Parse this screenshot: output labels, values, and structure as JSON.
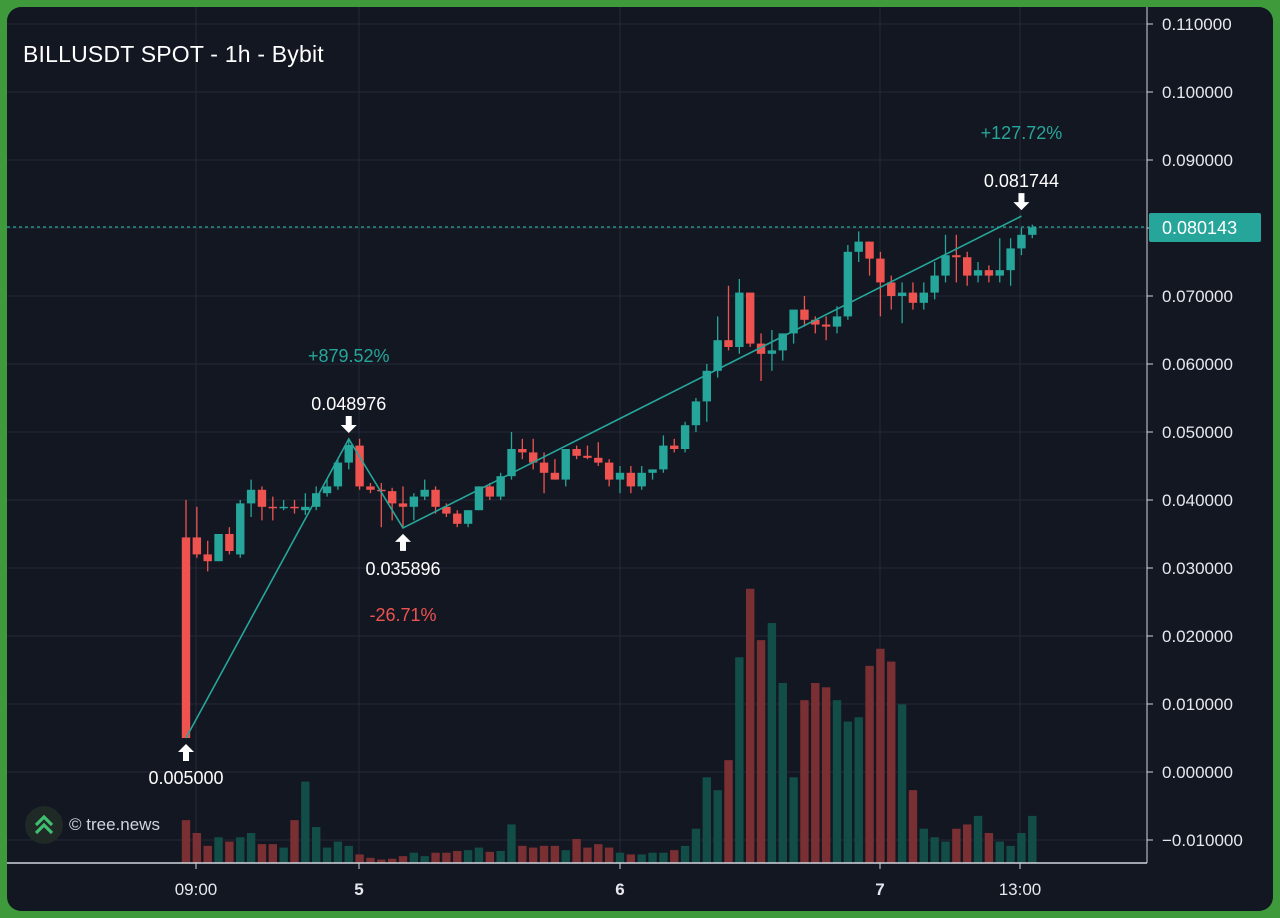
{
  "chart_data": {
    "type": "candlestick",
    "title": "BILLUSDT SPOT - 1h - Bybit",
    "y_ticks": [
      "0.110000",
      "0.100000",
      "0.090000",
      "0.080000",
      "0.070000",
      "0.060000",
      "0.050000",
      "0.040000",
      "0.030000",
      "0.020000",
      "0.010000",
      "0.000000",
      "−0.010000"
    ],
    "ylim": [
      -0.0125,
      0.1135
    ],
    "x_ticks": [
      {
        "label": "09:00",
        "index": 1,
        "bold": false
      },
      {
        "label": "5",
        "index": 16,
        "bold": true
      },
      {
        "label": "6",
        "index": 40,
        "bold": true
      },
      {
        "label": "7",
        "index": 64,
        "bold": true
      },
      {
        "label": "13:00",
        "index": 77,
        "bold": false
      }
    ],
    "grid": true,
    "last_price": "0.080143",
    "colors": {
      "up": "#26a69a",
      "down": "#ef5350",
      "vol_up": "#134d48",
      "vol_down": "#7a2f33",
      "pct_up": "#26a69a",
      "pct_down": "#ef5350"
    },
    "candles": [
      [
        0.0345,
        0.04,
        0.005,
        0.005
      ],
      [
        0.0345,
        0.039,
        0.0315,
        0.032
      ],
      [
        0.032,
        0.034,
        0.0295,
        0.031
      ],
      [
        0.031,
        0.035,
        0.031,
        0.035
      ],
      [
        0.035,
        0.036,
        0.032,
        0.0325
      ],
      [
        0.032,
        0.04,
        0.0315,
        0.0395
      ],
      [
        0.0395,
        0.043,
        0.0375,
        0.0415
      ],
      [
        0.0415,
        0.042,
        0.037,
        0.039
      ],
      [
        0.039,
        0.0405,
        0.037,
        0.0388
      ],
      [
        0.0388,
        0.04,
        0.0385,
        0.039
      ],
      [
        0.039,
        0.04,
        0.038,
        0.0388
      ],
      [
        0.0385,
        0.041,
        0.0378,
        0.039
      ],
      [
        0.039,
        0.042,
        0.0385,
        0.041
      ],
      [
        0.041,
        0.043,
        0.0405,
        0.042
      ],
      [
        0.042,
        0.046,
        0.0415,
        0.0455
      ],
      [
        0.0455,
        0.049,
        0.0445,
        0.0481
      ],
      [
        0.048,
        0.049,
        0.0415,
        0.042
      ],
      [
        0.042,
        0.0425,
        0.041,
        0.0415
      ],
      [
        0.0415,
        0.0425,
        0.036,
        0.0413
      ],
      [
        0.0413,
        0.0418,
        0.037,
        0.0395
      ],
      [
        0.0395,
        0.042,
        0.036,
        0.039
      ],
      [
        0.039,
        0.041,
        0.037,
        0.0405
      ],
      [
        0.0405,
        0.043,
        0.04,
        0.0415
      ],
      [
        0.0415,
        0.042,
        0.038,
        0.039
      ],
      [
        0.039,
        0.0395,
        0.0375,
        0.038
      ],
      [
        0.038,
        0.0385,
        0.036,
        0.0365
      ],
      [
        0.0365,
        0.0385,
        0.036,
        0.0385
      ],
      [
        0.0385,
        0.042,
        0.0385,
        0.042
      ],
      [
        0.042,
        0.0425,
        0.04,
        0.0405
      ],
      [
        0.0405,
        0.044,
        0.04,
        0.0435
      ],
      [
        0.0435,
        0.05,
        0.043,
        0.0475
      ],
      [
        0.0475,
        0.049,
        0.046,
        0.047
      ],
      [
        0.047,
        0.049,
        0.0445,
        0.0455
      ],
      [
        0.0455,
        0.047,
        0.041,
        0.044
      ],
      [
        0.044,
        0.046,
        0.043,
        0.043
      ],
      [
        0.043,
        0.047,
        0.042,
        0.0475
      ],
      [
        0.0475,
        0.048,
        0.046,
        0.0465
      ],
      [
        0.0465,
        0.048,
        0.046,
        0.0462
      ],
      [
        0.0462,
        0.0485,
        0.045,
        0.0455
      ],
      [
        0.0455,
        0.046,
        0.042,
        0.043
      ],
      [
        0.043,
        0.045,
        0.041,
        0.044
      ],
      [
        0.044,
        0.045,
        0.041,
        0.042
      ],
      [
        0.042,
        0.045,
        0.0415,
        0.044
      ],
      [
        0.044,
        0.0445,
        0.043,
        0.0445
      ],
      [
        0.0445,
        0.0495,
        0.044,
        0.048
      ],
      [
        0.048,
        0.049,
        0.047,
        0.0475
      ],
      [
        0.0475,
        0.0515,
        0.047,
        0.051
      ],
      [
        0.051,
        0.055,
        0.05,
        0.0545
      ],
      [
        0.0545,
        0.06,
        0.0515,
        0.059
      ],
      [
        0.059,
        0.067,
        0.058,
        0.0635
      ],
      [
        0.0635,
        0.0715,
        0.062,
        0.0625
      ],
      [
        0.0625,
        0.0725,
        0.0615,
        0.0705
      ],
      [
        0.0705,
        0.0705,
        0.0625,
        0.063
      ],
      [
        0.063,
        0.0645,
        0.0575,
        0.0615
      ],
      [
        0.0615,
        0.065,
        0.059,
        0.062
      ],
      [
        0.062,
        0.0645,
        0.0605,
        0.0645
      ],
      [
        0.0645,
        0.068,
        0.063,
        0.068
      ],
      [
        0.068,
        0.07,
        0.0655,
        0.0665
      ],
      [
        0.0665,
        0.067,
        0.0645,
        0.0658
      ],
      [
        0.0658,
        0.067,
        0.0635,
        0.0655
      ],
      [
        0.0655,
        0.0685,
        0.0645,
        0.067
      ],
      [
        0.067,
        0.0775,
        0.0665,
        0.0765
      ],
      [
        0.0765,
        0.0795,
        0.075,
        0.078
      ],
      [
        0.078,
        0.078,
        0.073,
        0.0755
      ],
      [
        0.0755,
        0.0765,
        0.067,
        0.072
      ],
      [
        0.072,
        0.073,
        0.068,
        0.07
      ],
      [
        0.07,
        0.072,
        0.066,
        0.0705
      ],
      [
        0.0705,
        0.072,
        0.068,
        0.069
      ],
      [
        0.069,
        0.072,
        0.068,
        0.0705
      ],
      [
        0.0705,
        0.075,
        0.0695,
        0.073
      ],
      [
        0.073,
        0.079,
        0.072,
        0.076
      ],
      [
        0.076,
        0.079,
        0.072,
        0.0757
      ],
      [
        0.0757,
        0.0765,
        0.0715,
        0.073
      ],
      [
        0.073,
        0.075,
        0.072,
        0.0738
      ],
      [
        0.0738,
        0.0745,
        0.072,
        0.073
      ],
      [
        0.073,
        0.0785,
        0.072,
        0.0738
      ],
      [
        0.0738,
        0.0785,
        0.0715,
        0.077
      ],
      [
        0.077,
        0.08,
        0.076,
        0.079
      ],
      [
        0.079,
        0.0805,
        0.0785,
        0.0801
      ]
    ],
    "volumes": [
      0.005,
      0.0035,
      0.002,
      0.003,
      0.0025,
      0.003,
      0.0035,
      0.0022,
      0.0022,
      0.0018,
      0.005,
      0.0095,
      0.0042,
      0.0018,
      0.0025,
      0.002,
      0.001,
      0.0006,
      0.0004,
      0.0005,
      0.0008,
      0.0012,
      0.0008,
      0.0012,
      0.0012,
      0.0014,
      0.0015,
      0.0018,
      0.0013,
      0.0014,
      0.0045,
      0.002,
      0.0018,
      0.002,
      0.002,
      0.0015,
      0.0028,
      0.0018,
      0.0022,
      0.0018,
      0.0012,
      0.001,
      0.001,
      0.0012,
      0.0012,
      0.0015,
      0.002,
      0.004,
      0.01,
      0.0085,
      0.012,
      0.024,
      0.032,
      0.026,
      0.028,
      0.021,
      0.01,
      0.019,
      0.021,
      0.0205,
      0.019,
      0.0165,
      0.017,
      0.023,
      0.025,
      0.0235,
      0.0185,
      0.0085,
      0.004,
      0.003,
      0.0025,
      0.004,
      0.0045,
      0.0055,
      0.0035,
      0.0025,
      0.002,
      0.0035,
      0.0055,
      0.0004
    ],
    "annotations": {
      "low1": {
        "index": 0,
        "price": 0.005,
        "label": "0.005000"
      },
      "high1": {
        "index": 15,
        "price": 0.048976,
        "label": "0.048976",
        "pct": "+879.52%"
      },
      "low2": {
        "index": 20,
        "price": 0.035896,
        "label": "0.035896",
        "pct": "-26.71%"
      },
      "high2": {
        "index": 77,
        "price": 0.081744,
        "label": "0.081744",
        "pct": "+127.72%"
      }
    }
  },
  "watermark": {
    "text": "© tree.news",
    "icon": "chevron-up-double-icon"
  }
}
